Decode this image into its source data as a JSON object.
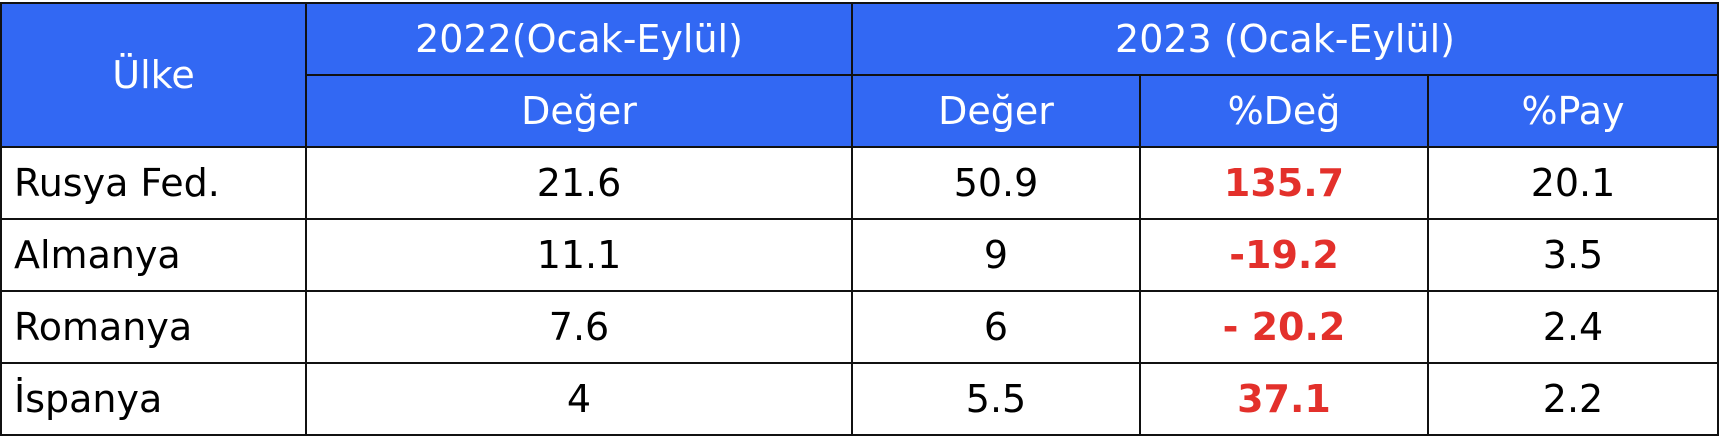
{
  "header": {
    "country": "Ülke",
    "period_2022": "2022(Ocak-Eylül)",
    "period_2023": "2023 (Ocak-Eylül)",
    "columns": [
      "Değer",
      "Değer",
      "%Değ",
      "%Pay"
    ]
  },
  "table": {
    "rows": [
      [
        "Rusya Fed.",
        "21.6",
        "50.9",
        "135.7",
        "20.1"
      ],
      [
        "Almanya",
        "11.1",
        "9",
        "-19.2",
        "3.5"
      ],
      [
        "Romanya",
        "7.6",
        "6",
        "- 20.2",
        "2.4"
      ],
      [
        "İspanya",
        "4",
        "5.5",
        "37.1",
        "2.2"
      ]
    ]
  }
}
